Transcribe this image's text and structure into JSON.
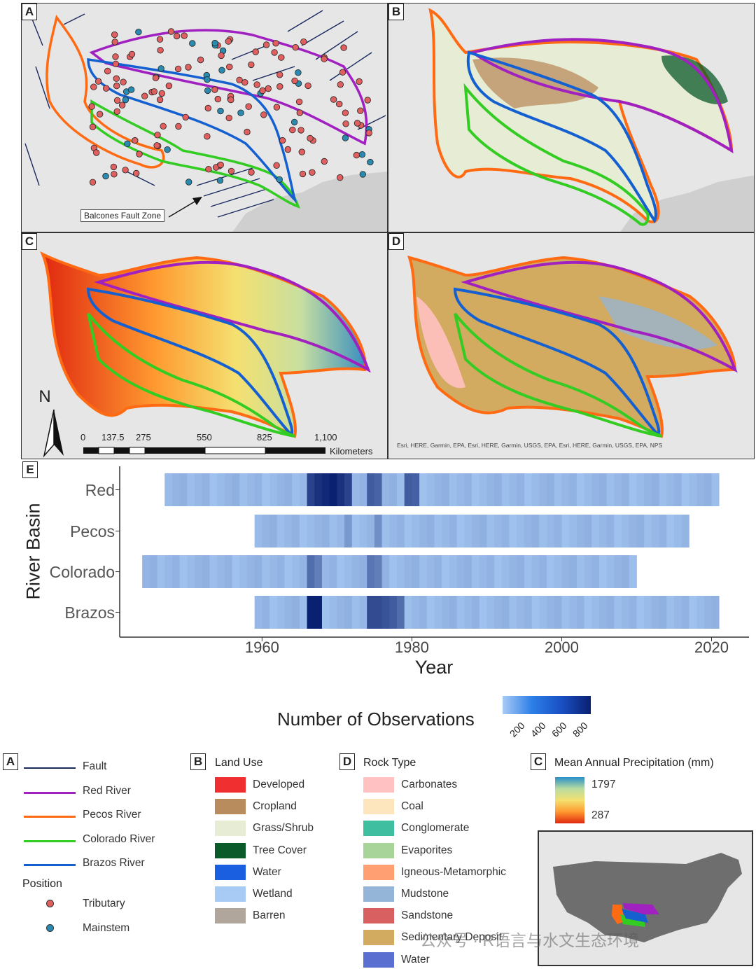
{
  "panels": {
    "a": {
      "label": "A",
      "annotation": "Balcones Fault Zone"
    },
    "b": {
      "label": "B"
    },
    "c": {
      "label": "C",
      "north": "N",
      "scale_ticks": [
        "0",
        "137.5",
        "275",
        "550",
        "825",
        "1,100"
      ],
      "scale_unit": "Kilometers"
    },
    "d": {
      "label": "D",
      "attribution": "Esri, HERE, Garmin, EPA, Esri, HERE, Garmin, USGS, EPA, Esri, HERE, Garmin, USGS, EPA, NPS"
    },
    "e": {
      "label": "E"
    }
  },
  "chart_data": {
    "type": "heatmap",
    "ylabel": "River Basin",
    "xlabel": "Year",
    "x_ticks": [
      "1960",
      "1980",
      "2000",
      "2020"
    ],
    "xlim": [
      1941,
      2025
    ],
    "colorbar_title": "Number of Observations",
    "colorbar_ticks": [
      "200",
      "400",
      "600",
      "800"
    ],
    "rows": [
      {
        "name": "Red",
        "start": 1947,
        "end": 2021,
        "peaks": [
          {
            "year": 1966,
            "level": 0.8
          },
          {
            "year": 1967,
            "level": 0.9
          },
          {
            "year": 1968,
            "level": 0.95
          },
          {
            "year": 1969,
            "level": 1.0
          },
          {
            "year": 1970,
            "level": 0.9
          },
          {
            "year": 1971,
            "level": 0.8
          },
          {
            "year": 1974,
            "level": 0.65
          },
          {
            "year": 1975,
            "level": 0.6
          },
          {
            "year": 1979,
            "level": 0.65
          },
          {
            "year": 1980,
            "level": 0.62
          }
        ]
      },
      {
        "name": "Pecos",
        "start": 1959,
        "end": 2017,
        "peaks": [
          {
            "year": 1971,
            "level": 0.3
          },
          {
            "year": 1975,
            "level": 0.35
          }
        ]
      },
      {
        "name": "Colorado",
        "start": 1944,
        "end": 2010,
        "peaks": [
          {
            "year": 1966,
            "level": 0.55
          },
          {
            "year": 1967,
            "level": 0.45
          },
          {
            "year": 1974,
            "level": 0.5
          },
          {
            "year": 1975,
            "level": 0.45
          }
        ]
      },
      {
        "name": "Brazos",
        "start": 1959,
        "end": 2021,
        "peaks": [
          {
            "year": 1966,
            "level": 1.0
          },
          {
            "year": 1967,
            "level": 1.0
          },
          {
            "year": 1974,
            "level": 0.75
          },
          {
            "year": 1975,
            "level": 0.75
          },
          {
            "year": 1976,
            "level": 0.7
          },
          {
            "year": 1977,
            "level": 0.65
          },
          {
            "year": 1978,
            "level": 0.55
          }
        ]
      }
    ]
  },
  "legend_a": {
    "label": "A",
    "items": [
      {
        "name": "Fault",
        "color": "#1a2a5e"
      },
      {
        "name": "Red River",
        "color": "#a020c0"
      },
      {
        "name": "Pecos River",
        "color": "#ff6a13"
      },
      {
        "name": "Colorado River",
        "color": "#33cc22"
      },
      {
        "name": "Brazos River",
        "color": "#1560d0"
      }
    ],
    "position_title": "Position",
    "positions": [
      {
        "name": "Tributary",
        "color": "#e06060"
      },
      {
        "name": "Mainstem",
        "color": "#2a8ab0"
      }
    ]
  },
  "legend_b": {
    "label": "B",
    "title": "Land Use",
    "items": [
      {
        "name": "Developed",
        "color": "#f03030"
      },
      {
        "name": "Cropland",
        "color": "#b98c5e"
      },
      {
        "name": "Grass/Shrub",
        "color": "#e7ecd4"
      },
      {
        "name": "Tree Cover",
        "color": "#0b5a2a"
      },
      {
        "name": "Water",
        "color": "#1a5fe0"
      },
      {
        "name": "Wetland",
        "color": "#a8cbf5"
      },
      {
        "name": "Barren",
        "color": "#b0a69c"
      }
    ]
  },
  "legend_d": {
    "label": "D",
    "title": "Rock Type",
    "items": [
      {
        "name": "Carbonates",
        "color": "#ffc1c1"
      },
      {
        "name": "Coal",
        "color": "#fde5bd"
      },
      {
        "name": "Conglomerate",
        "color": "#3fbfa0"
      },
      {
        "name": "Evaporites",
        "color": "#a8d49a"
      },
      {
        "name": "Igneous-Metamorphic",
        "color": "#ff9f72"
      },
      {
        "name": "Mudstone",
        "color": "#94b4d8"
      },
      {
        "name": "Sandstone",
        "color": "#d96060"
      },
      {
        "name": "Sedimentary Deposit",
        "color": "#d2aa60"
      },
      {
        "name": "Water",
        "color": "#5a6fd0"
      }
    ]
  },
  "legend_c": {
    "label": "C",
    "title": "Mean Annual Precipitation (mm)",
    "max": "1797",
    "min": "287"
  },
  "watermark": "公众号 · R语言与水文生态环境"
}
